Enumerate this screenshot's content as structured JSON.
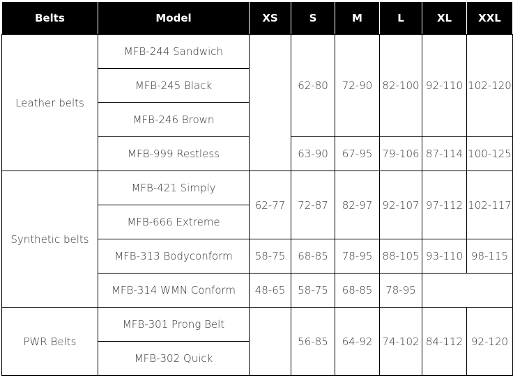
{
  "table": {
    "header": [
      "Belts",
      "Model",
      "XS",
      "S",
      "M",
      "L",
      "XL",
      "XXL"
    ],
    "rows": [
      [
        "Leather belts",
        "MFB-244 Sandwich",
        "62-80",
        "72-90",
        "82-100",
        "92-110",
        "102-120"
      ],
      [
        "MFB-245 Black"
      ],
      [
        "MFB-246 Brown"
      ],
      [
        "MFB-999 Restless",
        "63-90",
        "67-95",
        "79-106",
        "87-114",
        "100-125"
      ],
      [
        "Synthetic belts",
        "MFB-421 Simply",
        "62-77",
        "72-87",
        "82-97",
        "92-107",
        "97-112",
        "102-117"
      ],
      [
        "MFB-666 Extreme"
      ],
      [
        "MFB-313 Bodyconform",
        "58-75",
        "68-85",
        "78-95",
        "88-105",
        "93-110",
        "98-115"
      ],
      [
        "MFB-314 WMN Conform",
        "48-65",
        "58-75",
        "68-85",
        "78-95"
      ],
      [
        "PWR Belts",
        "MFB-301 Prong Belt",
        "56-85",
        "64-92",
        "74-102",
        "84-112",
        "92-120"
      ],
      [
        "MFB-302 Quick"
      ]
    ]
  }
}
